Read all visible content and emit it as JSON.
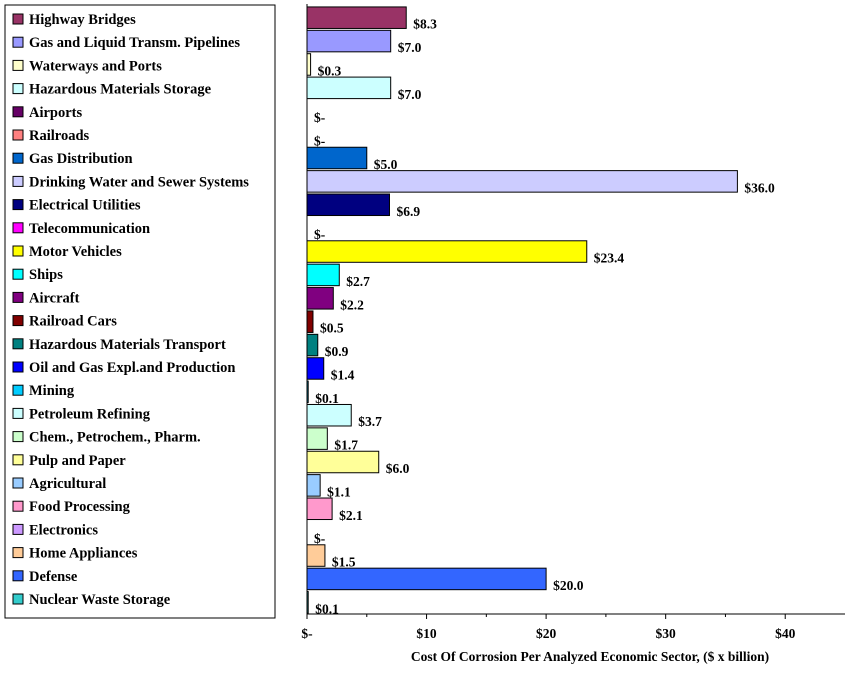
{
  "chart_data": {
    "type": "bar",
    "orientation": "horizontal",
    "categories": [
      "Highway Bridges",
      "Gas and Liquid Transm. Pipelines",
      "Waterways and Ports",
      "Hazardous Materials Storage",
      "Airports",
      "Railroads",
      "Gas Distribution",
      "Drinking Water and Sewer Systems",
      "Electrical Utilities",
      "Telecommunication",
      "Motor Vehicles",
      "Ships",
      "Aircraft",
      "Railroad Cars",
      "Hazardous Materials Transport",
      "Oil and Gas Expl.and Production",
      "Mining",
      "Petroleum Refining",
      "Chem., Petrochem., Pharm.",
      "Pulp and Paper",
      "Agricultural",
      "Food Processing",
      "Electronics",
      "Home Appliances",
      "Defense",
      "Nuclear Waste Storage"
    ],
    "values": [
      8.3,
      7.0,
      0.3,
      7.0,
      0,
      0,
      5.0,
      36.0,
      6.9,
      0,
      23.4,
      2.7,
      2.2,
      0.5,
      0.9,
      1.4,
      0.1,
      3.7,
      1.7,
      6.0,
      1.1,
      2.1,
      0,
      1.5,
      20.0,
      0.1
    ],
    "value_labels": [
      "$8.3",
      "$7.0",
      "$0.3",
      "$7.0",
      "$-",
      "$-",
      "$5.0",
      "$36.0",
      "$6.9",
      "$-",
      "$23.4",
      "$2.7",
      "$2.2",
      "$0.5",
      "$0.9",
      "$1.4",
      "$0.1",
      "$3.7",
      "$1.7",
      "$6.0",
      "$1.1",
      "$2.1",
      "$-",
      "$1.5",
      "$20.0",
      "$0.1"
    ],
    "colors": [
      "#993366",
      "#9999ff",
      "#ffffcc",
      "#ccffff",
      "#660066",
      "#ff8080",
      "#0066cc",
      "#ccccff",
      "#000080",
      "#ff00ff",
      "#ffff00",
      "#00ffff",
      "#800080",
      "#800000",
      "#008080",
      "#0000ff",
      "#00ccff",
      "#ccffff",
      "#ccffcc",
      "#ffff99",
      "#99ccff",
      "#ff99cc",
      "#cc99ff",
      "#ffcc99",
      "#3366ff",
      "#33cccc"
    ],
    "xlim": [
      0,
      45
    ],
    "xticks": [
      0,
      10,
      20,
      30,
      40
    ],
    "xtick_labels": [
      "$-",
      "$10",
      "$20",
      "$30",
      "$40"
    ],
    "xlabel": "Cost Of Corrosion Per Analyzed Economic Sector, ($ x billion)",
    "ylabel": "",
    "title": "",
    "grid": false,
    "legend_position": "left"
  }
}
